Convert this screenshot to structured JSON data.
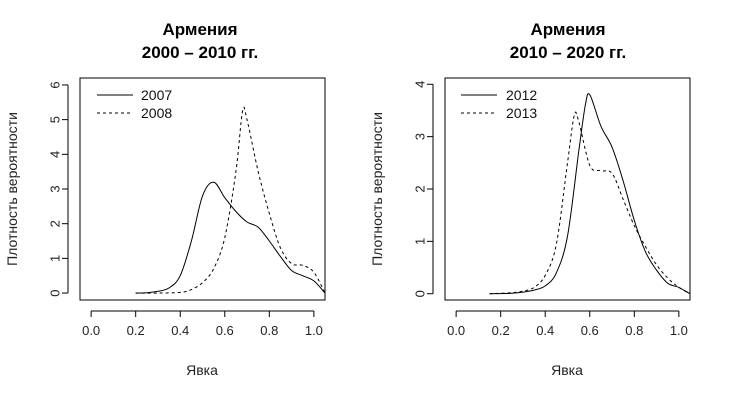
{
  "chart_data": [
    {
      "type": "line",
      "title": "Армения",
      "subtitle": "2000 – 2010 гг.",
      "xlabel": "Явка",
      "ylabel": "Плотность вероятности",
      "xlim": [
        -0.05,
        1.05
      ],
      "ylim": [
        -0.2,
        6.2
      ],
      "xticks": [
        "0.0",
        "0.2",
        "0.4",
        "0.6",
        "0.8",
        "1.0"
      ],
      "yticks": [
        "0",
        "1",
        "2",
        "3",
        "4",
        "5",
        "6"
      ],
      "legend_position": "top-left",
      "series": [
        {
          "name": "2007",
          "style": "solid",
          "x": [
            0.2,
            0.25,
            0.3,
            0.35,
            0.4,
            0.45,
            0.5,
            0.55,
            0.6,
            0.65,
            0.7,
            0.75,
            0.8,
            0.85,
            0.9,
            0.95,
            1.0,
            1.05
          ],
          "y": [
            0.0,
            0.01,
            0.05,
            0.15,
            0.5,
            1.5,
            2.8,
            3.2,
            2.75,
            2.35,
            2.05,
            1.9,
            1.5,
            1.05,
            0.65,
            0.5,
            0.35,
            0.0
          ]
        },
        {
          "name": "2008",
          "style": "dashed",
          "x": [
            0.2,
            0.3,
            0.4,
            0.45,
            0.5,
            0.55,
            0.6,
            0.65,
            0.68,
            0.7,
            0.75,
            0.8,
            0.85,
            0.9,
            0.95,
            1.0,
            1.05
          ],
          "y": [
            0.0,
            0.0,
            0.02,
            0.1,
            0.3,
            0.7,
            1.6,
            3.5,
            5.25,
            5.0,
            3.5,
            2.3,
            1.3,
            0.85,
            0.8,
            0.6,
            0.0
          ]
        }
      ]
    },
    {
      "type": "line",
      "title": "Армения",
      "subtitle": "2010 – 2020 гг.",
      "xlabel": "Явка",
      "ylabel": "Плотность вероятности",
      "xlim": [
        -0.05,
        1.05
      ],
      "ylim": [
        -0.12,
        4.12
      ],
      "xticks": [
        "0.0",
        "0.2",
        "0.4",
        "0.6",
        "0.8",
        "1.0"
      ],
      "yticks": [
        "0",
        "1",
        "2",
        "3",
        "4"
      ],
      "legend_position": "top-left",
      "series": [
        {
          "name": "2012",
          "style": "solid",
          "x": [
            0.15,
            0.25,
            0.3,
            0.35,
            0.4,
            0.45,
            0.5,
            0.55,
            0.58,
            0.6,
            0.65,
            0.7,
            0.75,
            0.8,
            0.85,
            0.9,
            0.95,
            1.0,
            1.05
          ],
          "y": [
            0.0,
            0.01,
            0.03,
            0.07,
            0.15,
            0.4,
            1.1,
            2.7,
            3.6,
            3.8,
            3.2,
            2.8,
            2.15,
            1.4,
            0.8,
            0.45,
            0.2,
            0.12,
            0.0
          ]
        },
        {
          "name": "2013",
          "style": "dashed",
          "x": [
            0.15,
            0.25,
            0.3,
            0.35,
            0.4,
            0.45,
            0.5,
            0.53,
            0.55,
            0.6,
            0.65,
            0.7,
            0.75,
            0.8,
            0.85,
            0.9,
            0.95,
            1.0,
            1.05
          ],
          "y": [
            0.0,
            0.02,
            0.05,
            0.12,
            0.35,
            0.95,
            2.5,
            3.4,
            3.3,
            2.45,
            2.35,
            2.3,
            1.8,
            1.3,
            0.9,
            0.55,
            0.3,
            0.12,
            0.0
          ]
        }
      ]
    }
  ]
}
